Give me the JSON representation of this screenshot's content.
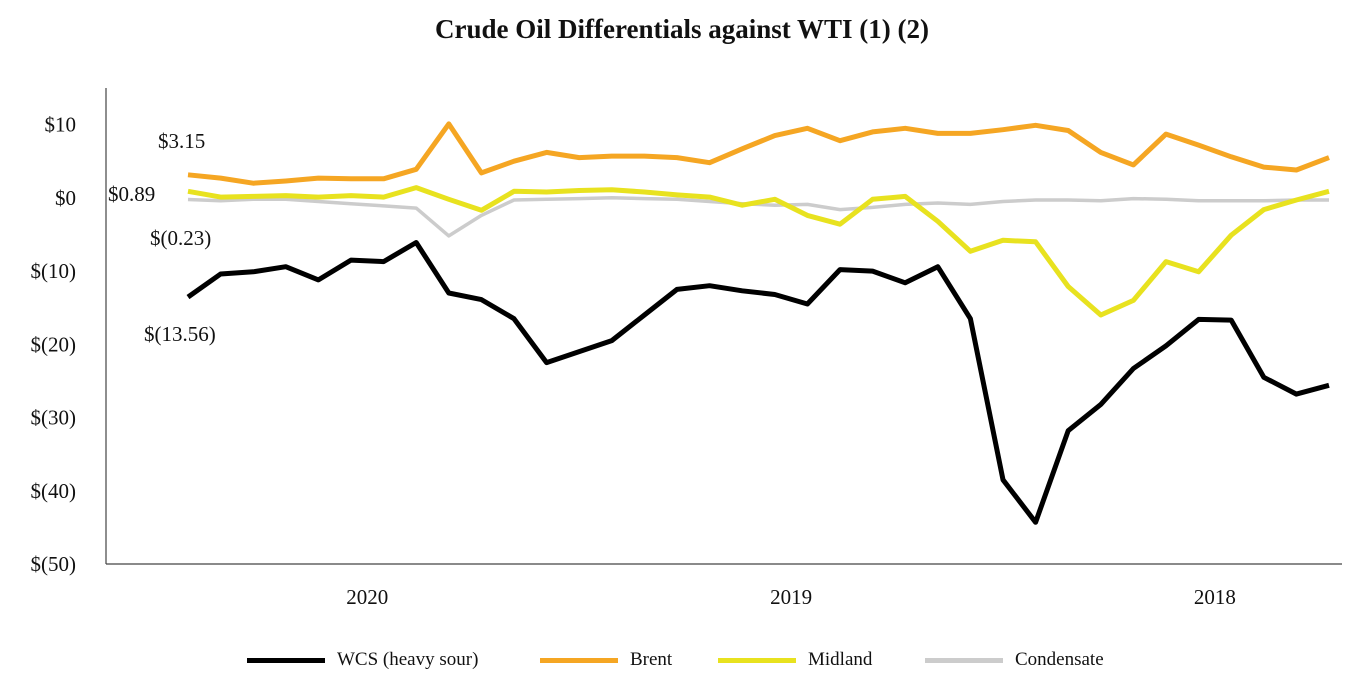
{
  "chart_data": {
    "type": "line",
    "title": "Crude Oil Differentials against WTI (1) (2)",
    "xlabel": "",
    "ylabel": "",
    "ylim": [
      -50,
      15
    ],
    "y_ticks": [
      10,
      0,
      -10,
      -20,
      -30,
      -40,
      -50
    ],
    "y_tick_labels": [
      "$10",
      "$0",
      "$(10)",
      "$(20)",
      "$(30)",
      "$(40)",
      "$(50)"
    ],
    "x_count": 36,
    "x_tick_labels": [
      {
        "label": "2020",
        "index": 5.5
      },
      {
        "label": "2019",
        "index": 18.5
      },
      {
        "label": "2018",
        "index": 31.5
      }
    ],
    "series": [
      {
        "name": "WCS (heavy sour)",
        "color": "#000000",
        "values": [
          -13.56,
          -10.4,
          -10.1,
          -9.4,
          -11.2,
          -8.5,
          -8.7,
          -6.1,
          -13.0,
          -13.9,
          -16.5,
          -22.5,
          -21.0,
          -19.5,
          -16.0,
          -12.5,
          -12.0,
          -12.7,
          -13.2,
          -14.5,
          -9.8,
          -10.0,
          -11.6,
          -9.4,
          -16.5,
          -38.5,
          -44.3,
          -31.8,
          -28.2,
          -23.3,
          -20.2,
          -16.6,
          -16.7,
          -24.5,
          -26.8,
          -25.6
        ],
        "start_label": "$(13.56)"
      },
      {
        "name": "Brent",
        "color": "#F5A623",
        "values": [
          3.15,
          2.7,
          2.0,
          2.3,
          2.7,
          2.6,
          2.6,
          3.9,
          10.1,
          3.4,
          5.0,
          6.2,
          5.5,
          5.7,
          5.7,
          5.5,
          4.8,
          6.7,
          8.5,
          9.5,
          7.8,
          9.0,
          9.5,
          8.8,
          8.8,
          9.3,
          9.9,
          9.2,
          6.2,
          4.5,
          8.7,
          7.2,
          5.6,
          4.2,
          3.8,
          5.5
        ],
        "start_label": "$3.15"
      },
      {
        "name": "Midland",
        "color": "#E8E21F",
        "values": [
          0.89,
          0.1,
          0.2,
          0.3,
          0.1,
          0.3,
          0.1,
          1.4,
          -0.2,
          -1.7,
          0.9,
          0.8,
          1.0,
          1.1,
          0.8,
          0.4,
          0.1,
          -1.0,
          -0.2,
          -2.4,
          -3.6,
          -0.2,
          0.2,
          -3.2,
          -7.3,
          -5.8,
          -6.0,
          -12.1,
          -16.0,
          -14.0,
          -8.7,
          -10.1,
          -5.1,
          -1.6,
          -0.3,
          0.9
        ],
        "start_label": "$0.89"
      },
      {
        "name": "Condensate",
        "color": "#CCCCCC",
        "values": [
          -0.23,
          -0.4,
          -0.2,
          -0.2,
          -0.5,
          -0.8,
          -1.1,
          -1.4,
          -5.2,
          -2.4,
          -0.3,
          -0.2,
          -0.1,
          0.0,
          -0.1,
          -0.2,
          -0.5,
          -0.8,
          -1.0,
          -0.9,
          -1.6,
          -1.3,
          -0.9,
          -0.7,
          -0.9,
          -0.5,
          -0.3,
          -0.3,
          -0.4,
          -0.1,
          -0.2,
          -0.4,
          -0.4,
          -0.4,
          -0.3,
          -0.3
        ],
        "start_label": "$(0.23)"
      }
    ]
  }
}
